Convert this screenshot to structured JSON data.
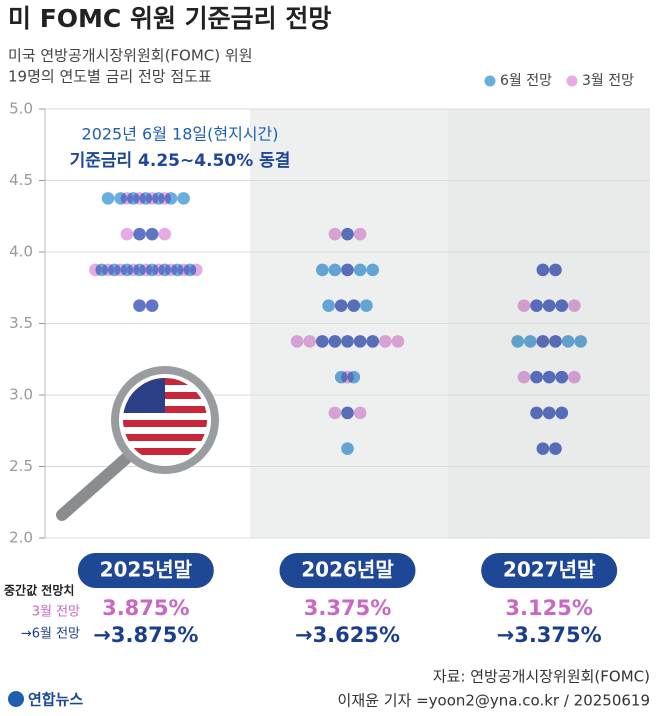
{
  "chart_data": {
    "type": "dot",
    "title": "미 FOMC 위원 기준금리 전망",
    "subtitle": [
      "미국 연방공개시장위원회(FOMC) 위원",
      "19명의 연도별 금리 전망 점도표"
    ],
    "annotations": [
      "2025년 6월 18일(현지시간)",
      "기준금리 4.25~4.50% 동결"
    ],
    "categories": [
      "2025년말",
      "2026년말",
      "2027년말"
    ],
    "ylim": [
      2,
      5
    ],
    "yticks": [
      {
        "value": 2,
        "label": "2.0"
      },
      2.5,
      {
        "value": 3,
        "label": "3.0"
      },
      3.5,
      {
        "value": 4,
        "label": "4.0"
      },
      4.5,
      {
        "value": 5,
        "label": "5.0"
      }
    ],
    "grid": true,
    "legend": "top-right",
    "series": [
      {
        "name": "6월 전망",
        "color": "#6aaee0",
        "values": [
          [
            {
              "y": 4.375,
              "count": 7
            },
            {
              "y": 4.125,
              "count": 2
            },
            {
              "y": 3.875,
              "count": 8
            },
            {
              "y": 3.625,
              "count": 2
            }
          ],
          [
            {
              "y": 4.125,
              "count": 1
            },
            {
              "y": 3.875,
              "count": 5
            },
            {
              "y": 3.625,
              "count": 4
            },
            {
              "y": 3.375,
              "count": 5
            },
            {
              "y": 3.125,
              "count": 2
            },
            {
              "y": 2.875,
              "count": 1
            },
            {
              "y": 2.625,
              "count": 1
            }
          ],
          [
            {
              "y": 3.875,
              "count": 2
            },
            {
              "y": 3.625,
              "count": 3
            },
            {
              "y": 3.375,
              "count": 6
            },
            {
              "y": 3.125,
              "count": 3
            },
            {
              "y": 2.875,
              "count": 3
            },
            {
              "y": 2.625,
              "count": 2
            }
          ]
        ]
      },
      {
        "name": "3월 전망",
        "color": "#e6abe2",
        "values": [
          [
            {
              "y": 4.375,
              "count": 4
            },
            {
              "y": 4.125,
              "count": 4
            },
            {
              "y": 3.875,
              "count": 9
            },
            {
              "y": 3.625,
              "count": 2
            }
          ],
          [
            {
              "y": 4.125,
              "count": 3
            },
            {
              "y": 3.875,
              "count": 1
            },
            {
              "y": 3.625,
              "count": 2
            },
            {
              "y": 3.375,
              "count": 9
            },
            {
              "y": 3.125,
              "count": 1
            },
            {
              "y": 2.875,
              "count": 3
            }
          ],
          [
            {
              "y": 3.875,
              "count": 2
            },
            {
              "y": 3.625,
              "count": 5
            },
            {
              "y": 3.375,
              "count": 2
            },
            {
              "y": 3.125,
              "count": 5
            },
            {
              "y": 2.875,
              "count": 3
            },
            {
              "y": 2.625,
              "count": 2
            }
          ]
        ]
      }
    ],
    "medians": {
      "title": "중간값 전망치",
      "rows": [
        {
          "label": "3월 전망",
          "color": "#c867c4",
          "values": [
            "3.875%",
            "3.375%",
            "3.125%"
          ]
        },
        {
          "label": "→6월 전망",
          "color": "#1a3e8c",
          "values": [
            "→3.875%",
            "→3.625%",
            "→3.375%"
          ]
        }
      ]
    }
  },
  "source": "자료: 연방공개시장위원회(FOMC)",
  "credit": "이재윤 기자 =yoon2@yna.co.kr / 20250619",
  "logo": "연합뉴스"
}
